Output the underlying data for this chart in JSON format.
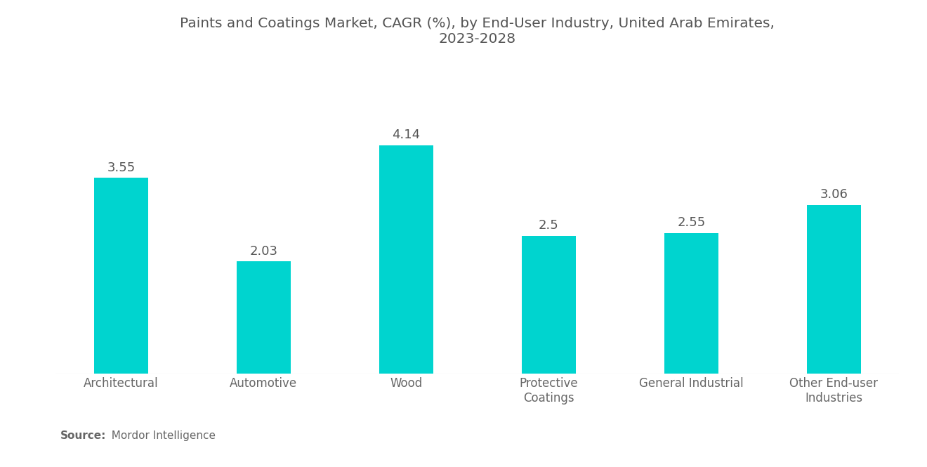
{
  "title": "Paints and Coatings Market, CAGR (%), by End-User Industry, United Arab Emirates,\n2023-2028",
  "categories": [
    "Architectural",
    "Automotive",
    "Wood",
    "Protective\nCoatings",
    "General Industrial",
    "Other End-user\nIndustries"
  ],
  "values": [
    3.55,
    2.03,
    4.14,
    2.5,
    2.55,
    3.06
  ],
  "bar_color": "#00D4CF",
  "background_color": "#ffffff",
  "title_color": "#555555",
  "label_color": "#666666",
  "value_color": "#555555",
  "source_bold": "Source:",
  "source_normal": "  Mordor Intelligence",
  "ylim": [
    0,
    5.5
  ],
  "title_fontsize": 14.5,
  "label_fontsize": 12,
  "value_fontsize": 13,
  "bar_width": 0.38
}
